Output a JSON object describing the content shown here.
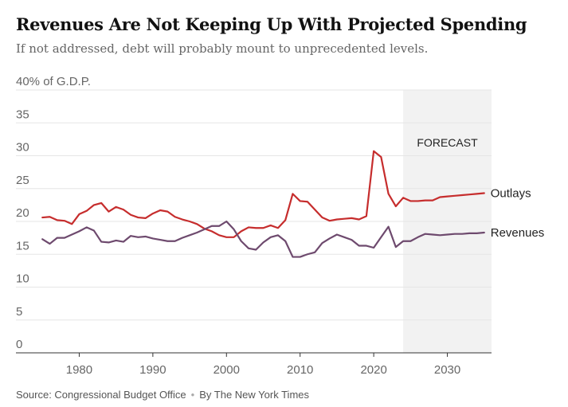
{
  "header": {
    "title": "Revenues Are Not Keeping Up With Projected Spending",
    "subtitle": "If not addressed, debt will probably mount to unprecedented levels."
  },
  "footer": {
    "source": "Source: Congressional Budget Office",
    "credit": "By The New York Times"
  },
  "colors": {
    "outlays": "#c62d2d",
    "revenues": "#6e4a6e",
    "forecast_shade": "#f2f2f2",
    "grid": "#e6e6e6"
  },
  "chart_data": {
    "type": "line",
    "title": "Revenues Are Not Keeping Up With Projected Spending",
    "ylabel": "% of G.D.P.",
    "ylim": [
      0,
      40
    ],
    "xlim": [
      1974,
      2036
    ],
    "y_ticks": [
      0,
      5,
      10,
      15,
      20,
      25,
      30,
      35,
      40
    ],
    "y_tick_labels": [
      "0",
      "5",
      "10",
      "15",
      "20",
      "25",
      "30",
      "35",
      "40% of G.D.P."
    ],
    "x_ticks": [
      1980,
      1990,
      2000,
      2010,
      2020,
      2030
    ],
    "x_tick_labels": [
      "1980",
      "1990",
      "2000",
      "2010",
      "2020",
      "2030"
    ],
    "forecast_range": [
      2024,
      2036
    ],
    "forecast_label": "FORECAST",
    "series": [
      {
        "name": "Outlays",
        "label": "Outlays",
        "x": [
          1975,
          1976,
          1977,
          1978,
          1979,
          1980,
          1981,
          1982,
          1983,
          1984,
          1985,
          1986,
          1987,
          1988,
          1989,
          1990,
          1991,
          1992,
          1993,
          1994,
          1995,
          1996,
          1997,
          1998,
          1999,
          2000,
          2001,
          2002,
          2003,
          2004,
          2005,
          2006,
          2007,
          2008,
          2009,
          2010,
          2011,
          2012,
          2013,
          2014,
          2015,
          2016,
          2017,
          2018,
          2019,
          2020,
          2021,
          2022,
          2023,
          2024,
          2025,
          2026,
          2027,
          2028,
          2029,
          2030,
          2031,
          2032,
          2033,
          2034,
          2035
        ],
        "values": [
          20.6,
          20.7,
          20.2,
          20.1,
          19.6,
          21.1,
          21.6,
          22.5,
          22.8,
          21.5,
          22.2,
          21.8,
          21.0,
          20.6,
          20.5,
          21.2,
          21.7,
          21.5,
          20.7,
          20.3,
          20.0,
          19.6,
          18.9,
          18.5,
          17.9,
          17.6,
          17.6,
          18.5,
          19.1,
          19.0,
          19.0,
          19.4,
          19.0,
          20.2,
          24.2,
          23.1,
          23.0,
          21.8,
          20.6,
          20.1,
          20.3,
          20.4,
          20.5,
          20.3,
          20.8,
          30.7,
          29.8,
          24.2,
          22.3,
          23.6,
          23.1,
          23.1,
          23.2,
          23.2,
          23.7,
          23.8,
          23.9,
          24.0,
          24.1,
          24.2,
          24.3
        ]
      },
      {
        "name": "Revenues",
        "label": "Revenues",
        "x": [
          1975,
          1976,
          1977,
          1978,
          1979,
          1980,
          1981,
          1982,
          1983,
          1984,
          1985,
          1986,
          1987,
          1988,
          1989,
          1990,
          1991,
          1992,
          1993,
          1994,
          1995,
          1996,
          1997,
          1998,
          1999,
          2000,
          2001,
          2002,
          2003,
          2004,
          2005,
          2006,
          2007,
          2008,
          2009,
          2010,
          2011,
          2012,
          2013,
          2014,
          2015,
          2016,
          2017,
          2018,
          2019,
          2020,
          2021,
          2022,
          2023,
          2024,
          2025,
          2026,
          2027,
          2028,
          2029,
          2030,
          2031,
          2032,
          2033,
          2034,
          2035
        ],
        "values": [
          17.3,
          16.6,
          17.5,
          17.5,
          18.0,
          18.5,
          19.1,
          18.6,
          16.9,
          16.8,
          17.1,
          16.9,
          17.8,
          17.6,
          17.7,
          17.4,
          17.2,
          17.0,
          17.0,
          17.5,
          17.9,
          18.3,
          18.8,
          19.3,
          19.3,
          20.0,
          18.8,
          17.0,
          15.9,
          15.7,
          16.8,
          17.6,
          17.9,
          17.0,
          14.6,
          14.6,
          15.0,
          15.3,
          16.7,
          17.4,
          18.0,
          17.6,
          17.2,
          16.3,
          16.3,
          16.0,
          17.6,
          19.2,
          16.1,
          17.0,
          17.0,
          17.6,
          18.1,
          18.0,
          17.9,
          18.0,
          18.1,
          18.1,
          18.2,
          18.2,
          18.3
        ]
      }
    ]
  }
}
